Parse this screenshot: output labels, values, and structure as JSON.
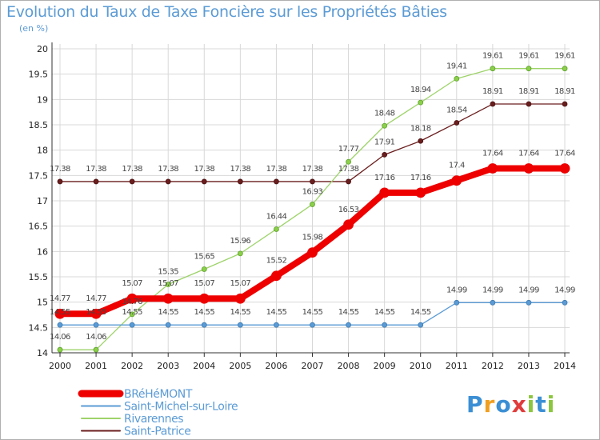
{
  "title": "Evolution du Taux de Taxe Foncière sur les Propriétés Bâties",
  "unit_label": "(en %)",
  "logo": {
    "letters": [
      "P",
      "r",
      "o",
      "x",
      "i",
      "t",
      "i"
    ],
    "colors": [
      "#3b8fd4",
      "#f0a020",
      "#3b8fd4",
      "#e03c3c",
      "#8cc63f",
      "#3b8fd4",
      "#8cc63f"
    ]
  },
  "colors": {
    "title": "#5b9bd5",
    "grid": "#d8d8d8",
    "axis": "#333333"
  },
  "chart_data": {
    "type": "line",
    "title": "Evolution du Taux de Taxe Foncière sur les Propriétés Bâties",
    "ylabel": "(en %)",
    "ylim": [
      14,
      20
    ],
    "yticks": [
      14,
      14.5,
      15,
      15.5,
      16,
      16.5,
      17,
      17.5,
      18,
      18.5,
      19,
      19.5,
      20
    ],
    "grid": true,
    "legend_position": "bottom-left",
    "x": [
      "2000",
      "2001",
      "2002",
      "2003",
      "2004",
      "2005",
      "2006",
      "2007",
      "2008",
      "2009",
      "2010",
      "2011",
      "2012",
      "2013",
      "2014"
    ],
    "series": [
      {
        "name": "Saint-Patrice",
        "color": "#6b1e1e",
        "values": [
          17.38,
          17.38,
          17.38,
          17.38,
          17.38,
          17.38,
          17.38,
          17.38,
          17.38,
          17.91,
          18.18,
          18.54,
          18.91,
          18.91,
          18.91
        ]
      },
      {
        "name": "Rivarennes",
        "color": "#9ed36a",
        "values": [
          14.06,
          14.06,
          14.76,
          15.35,
          15.65,
          15.96,
          16.44,
          16.93,
          17.77,
          18.48,
          18.94,
          19.41,
          19.61,
          19.61,
          19.61
        ]
      },
      {
        "name": "Saint-Michel-sur-Loire",
        "color": "#5b9bd5",
        "values": [
          14.55,
          14.55,
          14.55,
          14.55,
          14.55,
          14.55,
          14.55,
          14.55,
          14.55,
          14.55,
          14.55,
          14.99,
          14.99,
          14.99,
          14.99
        ]
      },
      {
        "name": "BRéHéMONT",
        "color": "#ee0000",
        "values": [
          14.77,
          14.77,
          15.07,
          15.07,
          15.07,
          15.07,
          15.52,
          15.98,
          16.53,
          17.16,
          17.16,
          17.4,
          17.64,
          17.64,
          17.64
        ]
      }
    ],
    "legend_order": [
      "BRéHéMONT",
      "Saint-Michel-sur-Loire",
      "Rivarennes",
      "Saint-Patrice"
    ]
  }
}
